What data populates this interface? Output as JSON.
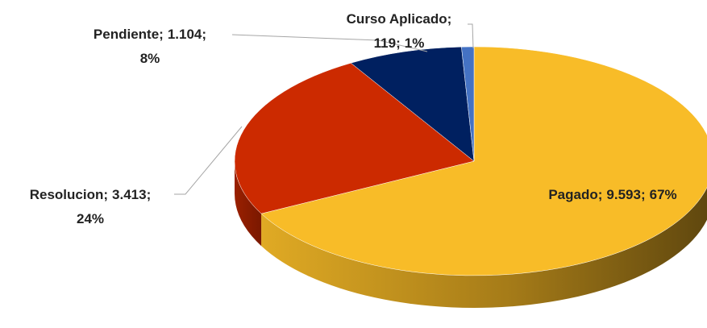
{
  "chart_data": {
    "type": "pie3d",
    "categories": [
      "Pagado",
      "Resolucion",
      "Pendiente",
      "Curso Aplicado"
    ],
    "values": [
      9593,
      3413,
      1104,
      119
    ],
    "value_labels": [
      "9.593",
      "3.413",
      "1.104",
      "119"
    ],
    "percentages": [
      67,
      24,
      8,
      1
    ],
    "percentage_labels": [
      "67%",
      "24%",
      "8%",
      "1%"
    ],
    "separator": ";",
    "colors": [
      "#F8BC28",
      "#CC2A00",
      "#002060",
      "#4472C4"
    ]
  }
}
